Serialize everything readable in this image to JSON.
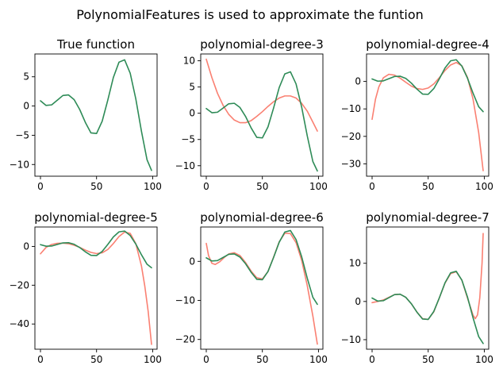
{
  "figure": {
    "suptitle": "PolynomialFeatures is used to approximate the funtion"
  },
  "colors": {
    "true_function": "#2e8b57",
    "approximation": "#fa8072",
    "axes": "#000000"
  },
  "chart_data": [
    {
      "type": "line",
      "title": "True function",
      "xlim": [
        -4.95,
        103.95
      ],
      "ylim": [
        -12.0,
        8.9
      ],
      "xticks": [
        0,
        50,
        100
      ],
      "yticks": [
        -10,
        -5,
        0,
        5
      ],
      "series": [
        {
          "role": "true",
          "x": [
            0,
            5,
            10,
            15,
            20,
            25,
            30,
            35,
            40,
            45,
            50,
            55,
            60,
            65,
            70,
            75,
            80,
            85,
            90,
            95,
            99
          ],
          "y": [
            0.9,
            0.1,
            0.2,
            1.0,
            1.8,
            1.9,
            1.1,
            -0.6,
            -2.8,
            -4.6,
            -4.7,
            -2.6,
            1.0,
            4.9,
            7.5,
            7.9,
            5.6,
            1.2,
            -4.3,
            -9.2,
            -11.0
          ]
        }
      ]
    },
    {
      "type": "line",
      "title": "polynomial-degree-3",
      "xlim": [
        -4.95,
        103.95
      ],
      "ylim": [
        -12.0,
        11.3
      ],
      "xticks": [
        0,
        50,
        100
      ],
      "yticks": [
        -10,
        -5,
        0,
        5,
        10
      ],
      "series": [
        {
          "role": "approximation",
          "x": [
            0,
            5,
            10,
            15,
            20,
            25,
            30,
            35,
            40,
            45,
            50,
            55,
            60,
            65,
            70,
            75,
            80,
            85,
            90,
            95,
            99
          ],
          "y": [
            10.3,
            6.8,
            3.8,
            1.5,
            -0.2,
            -1.3,
            -1.8,
            -1.8,
            -1.4,
            -0.6,
            0.3,
            1.3,
            2.2,
            2.9,
            3.3,
            3.3,
            2.9,
            1.9,
            0.4,
            -1.7,
            -3.4
          ]
        },
        {
          "role": "true",
          "x": [
            0,
            5,
            10,
            15,
            20,
            25,
            30,
            35,
            40,
            45,
            50,
            55,
            60,
            65,
            70,
            75,
            80,
            85,
            90,
            95,
            99
          ],
          "y": [
            0.9,
            0.1,
            0.2,
            1.0,
            1.8,
            1.9,
            1.1,
            -0.6,
            -2.8,
            -4.6,
            -4.7,
            -2.6,
            1.0,
            4.9,
            7.5,
            7.9,
            5.6,
            1.2,
            -4.3,
            -9.2,
            -11.0
          ]
        }
      ]
    },
    {
      "type": "line",
      "title": "polynomial-degree-4",
      "xlim": [
        -4.95,
        103.95
      ],
      "ylim": [
        -34.5,
        10.0
      ],
      "xticks": [
        0,
        50,
        100
      ],
      "yticks": [
        -30,
        -20,
        -10,
        0
      ],
      "series": [
        {
          "role": "approximation",
          "x": [
            0,
            3,
            6,
            10,
            15,
            20,
            25,
            30,
            35,
            40,
            45,
            50,
            55,
            60,
            65,
            70,
            75,
            80,
            85,
            90,
            95,
            99
          ],
          "y": [
            -13.8,
            -6.5,
            -2.0,
            1.3,
            2.6,
            2.3,
            1.2,
            -0.3,
            -1.7,
            -2.6,
            -2.9,
            -2.4,
            -0.9,
            1.4,
            4.0,
            6.0,
            6.9,
            5.7,
            1.5,
            -6.5,
            -18.6,
            -32.5
          ]
        },
        {
          "role": "true",
          "x": [
            0,
            5,
            10,
            15,
            20,
            25,
            30,
            35,
            40,
            45,
            50,
            55,
            60,
            65,
            70,
            75,
            80,
            85,
            90,
            95,
            99
          ],
          "y": [
            0.9,
            0.1,
            0.2,
            1.0,
            1.8,
            1.9,
            1.1,
            -0.6,
            -2.8,
            -4.6,
            -4.7,
            -2.6,
            1.0,
            4.9,
            7.5,
            7.9,
            5.6,
            1.2,
            -4.3,
            -9.2,
            -11.0
          ]
        }
      ]
    },
    {
      "type": "line",
      "title": "polynomial-degree-5",
      "xlim": [
        -4.95,
        103.95
      ],
      "ylim": [
        -53.0,
        10.0
      ],
      "xticks": [
        0,
        50,
        100
      ],
      "yticks": [
        -40,
        -20,
        0
      ],
      "series": [
        {
          "role": "approximation",
          "x": [
            0,
            5,
            10,
            15,
            20,
            25,
            30,
            35,
            40,
            45,
            50,
            55,
            60,
            65,
            70,
            75,
            80,
            85,
            90,
            93,
            96,
            99
          ],
          "y": [
            -3.8,
            -0.5,
            1.0,
            1.6,
            1.7,
            1.4,
            0.6,
            -0.5,
            -1.9,
            -3.1,
            -3.7,
            -3.3,
            -1.6,
            1.5,
            5.1,
            7.4,
            6.7,
            1.4,
            -10.0,
            -20.5,
            -33.5,
            -50.5
          ]
        },
        {
          "role": "true",
          "x": [
            0,
            5,
            10,
            15,
            20,
            25,
            30,
            35,
            40,
            45,
            50,
            55,
            60,
            65,
            70,
            75,
            80,
            85,
            90,
            95,
            99
          ],
          "y": [
            0.9,
            0.1,
            0.2,
            1.0,
            1.8,
            1.9,
            1.1,
            -0.6,
            -2.8,
            -4.6,
            -4.7,
            -2.6,
            1.0,
            4.9,
            7.5,
            7.9,
            5.6,
            1.2,
            -4.3,
            -9.2,
            -11.0
          ]
        }
      ]
    },
    {
      "type": "line",
      "title": "polynomial-degree-6",
      "xlim": [
        -4.95,
        103.95
      ],
      "ylim": [
        -22.5,
        8.8
      ],
      "xticks": [
        0,
        50,
        100
      ],
      "yticks": [
        -20,
        -10,
        0
      ],
      "series": [
        {
          "role": "approximation",
          "x": [
            0,
            2,
            5,
            8,
            12,
            16,
            20,
            25,
            30,
            35,
            40,
            45,
            50,
            55,
            60,
            65,
            70,
            75,
            80,
            85,
            90,
            95,
            99
          ],
          "y": [
            4.6,
            1.5,
            -0.5,
            -0.8,
            -0.1,
            1.0,
            1.9,
            2.2,
            1.5,
            -0.3,
            -2.5,
            -4.2,
            -4.5,
            -2.6,
            1.1,
            5.0,
            7.2,
            7.1,
            4.8,
            0.3,
            -6.2,
            -14.0,
            -21.2
          ]
        },
        {
          "role": "true",
          "x": [
            0,
            5,
            10,
            15,
            20,
            25,
            30,
            35,
            40,
            45,
            50,
            55,
            60,
            65,
            70,
            75,
            80,
            85,
            90,
            95,
            99
          ],
          "y": [
            0.9,
            0.1,
            0.2,
            1.0,
            1.8,
            1.9,
            1.1,
            -0.6,
            -2.8,
            -4.6,
            -4.7,
            -2.6,
            1.0,
            4.9,
            7.5,
            7.9,
            5.6,
            1.2,
            -4.3,
            -9.2,
            -11.0
          ]
        }
      ]
    },
    {
      "type": "line",
      "title": "polynomial-degree-7",
      "xlim": [
        -4.95,
        103.95
      ],
      "ylim": [
        -12.5,
        19.5
      ],
      "xticks": [
        0,
        50,
        100
      ],
      "yticks": [
        -10,
        0,
        10
      ],
      "series": [
        {
          "role": "approximation",
          "x": [
            0,
            5,
            10,
            15,
            20,
            25,
            30,
            35,
            40,
            45,
            50,
            55,
            60,
            65,
            70,
            75,
            80,
            85,
            90,
            92,
            94,
            96,
            98,
            99
          ],
          "y": [
            -0.3,
            0.0,
            0.4,
            1.1,
            1.8,
            1.9,
            1.1,
            -0.6,
            -2.8,
            -4.5,
            -4.7,
            -2.7,
            1.0,
            4.8,
            7.3,
            7.8,
            5.6,
            0.9,
            -3.6,
            -4.5,
            -3.5,
            1.0,
            10.0,
            17.8
          ]
        },
        {
          "role": "true",
          "x": [
            0,
            5,
            10,
            15,
            20,
            25,
            30,
            35,
            40,
            45,
            50,
            55,
            60,
            65,
            70,
            75,
            80,
            85,
            90,
            95,
            99
          ],
          "y": [
            0.9,
            0.1,
            0.2,
            1.0,
            1.8,
            1.9,
            1.1,
            -0.6,
            -2.8,
            -4.6,
            -4.7,
            -2.6,
            1.0,
            4.9,
            7.5,
            7.9,
            5.6,
            1.2,
            -4.3,
            -9.2,
            -11.0
          ]
        }
      ]
    }
  ]
}
